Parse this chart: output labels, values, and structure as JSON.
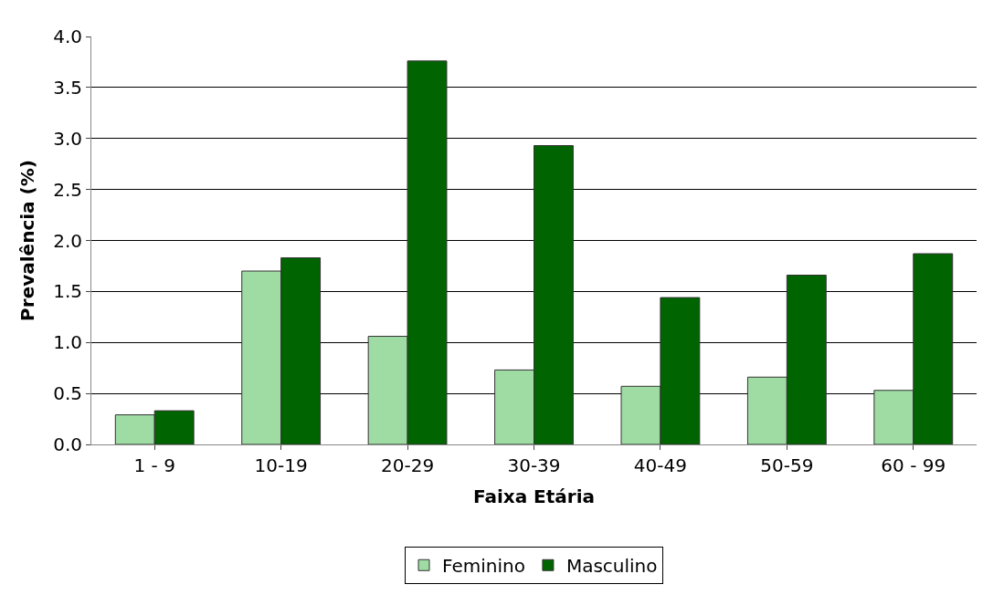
{
  "chart_data": {
    "type": "bar",
    "xlabel": "Faixa Etária",
    "ylabel": "Prevalência (%)",
    "categories": [
      "1 - 9",
      "10-19",
      "20-29",
      "30-39",
      "40-49",
      "50-59",
      "60 - 99"
    ],
    "series": [
      {
        "name": "Feminino",
        "color": "#9fdca4",
        "values": [
          0.29,
          1.7,
          1.06,
          0.73,
          0.57,
          0.66,
          0.53
        ]
      },
      {
        "name": "Masculino",
        "color": "#006400",
        "values": [
          0.33,
          1.83,
          3.76,
          2.93,
          1.44,
          1.66,
          1.87
        ]
      }
    ],
    "ylim": [
      0,
      4
    ],
    "yticks": [
      {
        "value": 0,
        "label": "0.0"
      },
      {
        "value": 0.5,
        "label": "0.5"
      },
      {
        "value": 1,
        "label": "1.0"
      },
      {
        "value": 1.5,
        "label": "1.5"
      },
      {
        "value": 2,
        "label": "2.0"
      },
      {
        "value": 2.5,
        "label": "2.5"
      },
      {
        "value": 3,
        "label": "3.0"
      },
      {
        "value": 3.5,
        "label": "3.5"
      },
      {
        "value": 4,
        "label": "4.0"
      }
    ],
    "grid": "y",
    "legend": "bottom"
  }
}
